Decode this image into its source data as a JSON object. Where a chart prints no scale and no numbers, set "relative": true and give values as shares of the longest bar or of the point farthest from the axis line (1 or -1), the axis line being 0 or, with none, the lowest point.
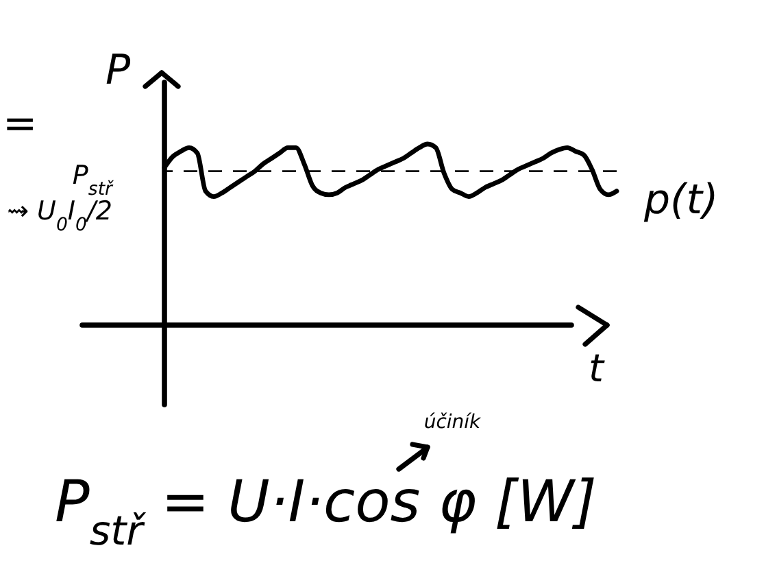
{
  "chart_data": {
    "type": "line",
    "relative": true,
    "xlabel": "t",
    "ylabel": "P",
    "categories": [
      null,
      null,
      null,
      null,
      null,
      null,
      null,
      null,
      null,
      null,
      null,
      null,
      null,
      null,
      null,
      null,
      null,
      null,
      null,
      null,
      null,
      null,
      null,
      null,
      null,
      null,
      null,
      null,
      null,
      null,
      null,
      null,
      null,
      null,
      null,
      null,
      null,
      null,
      null,
      null,
      null,
      null,
      null,
      null,
      null,
      null,
      null,
      null,
      null,
      null,
      null,
      null,
      null,
      null,
      null,
      null
    ],
    "series": [
      {
        "name": "p(t)",
        "color": "#000000",
        "values": [
          0.87,
          0.93,
          0.96,
          0.98,
          0.95,
          0.74,
          0.71,
          0.73,
          0.76,
          0.79,
          0.82,
          0.85,
          0.89,
          0.92,
          0.95,
          0.98,
          0.98,
          0.89,
          0.77,
          0.73,
          0.72,
          0.73,
          0.76,
          0.78,
          0.8,
          0.83,
          0.86,
          0.88,
          0.9,
          0.92,
          0.95,
          0.98,
          1.0,
          0.98,
          0.84,
          0.75,
          0.73,
          0.71,
          0.73,
          0.76,
          0.78,
          0.8,
          0.83,
          0.86,
          0.88,
          0.9,
          0.92,
          0.95,
          0.97,
          0.98,
          0.96,
          0.94,
          0.86,
          0.75,
          0.72,
          0.74
        ]
      }
    ],
    "ref_lines": [
      {
        "axis": "y",
        "value": 0.85,
        "label": "P$_{stř}$ ⇝ U$_{0}$I$_{0}$/2",
        "color": "#000000",
        "line_style": "dashed"
      }
    ],
    "annotations": [
      "=",
      "P$_{stř}$ = U·I·cos φ [W]",
      "účiník"
    ]
  }
}
